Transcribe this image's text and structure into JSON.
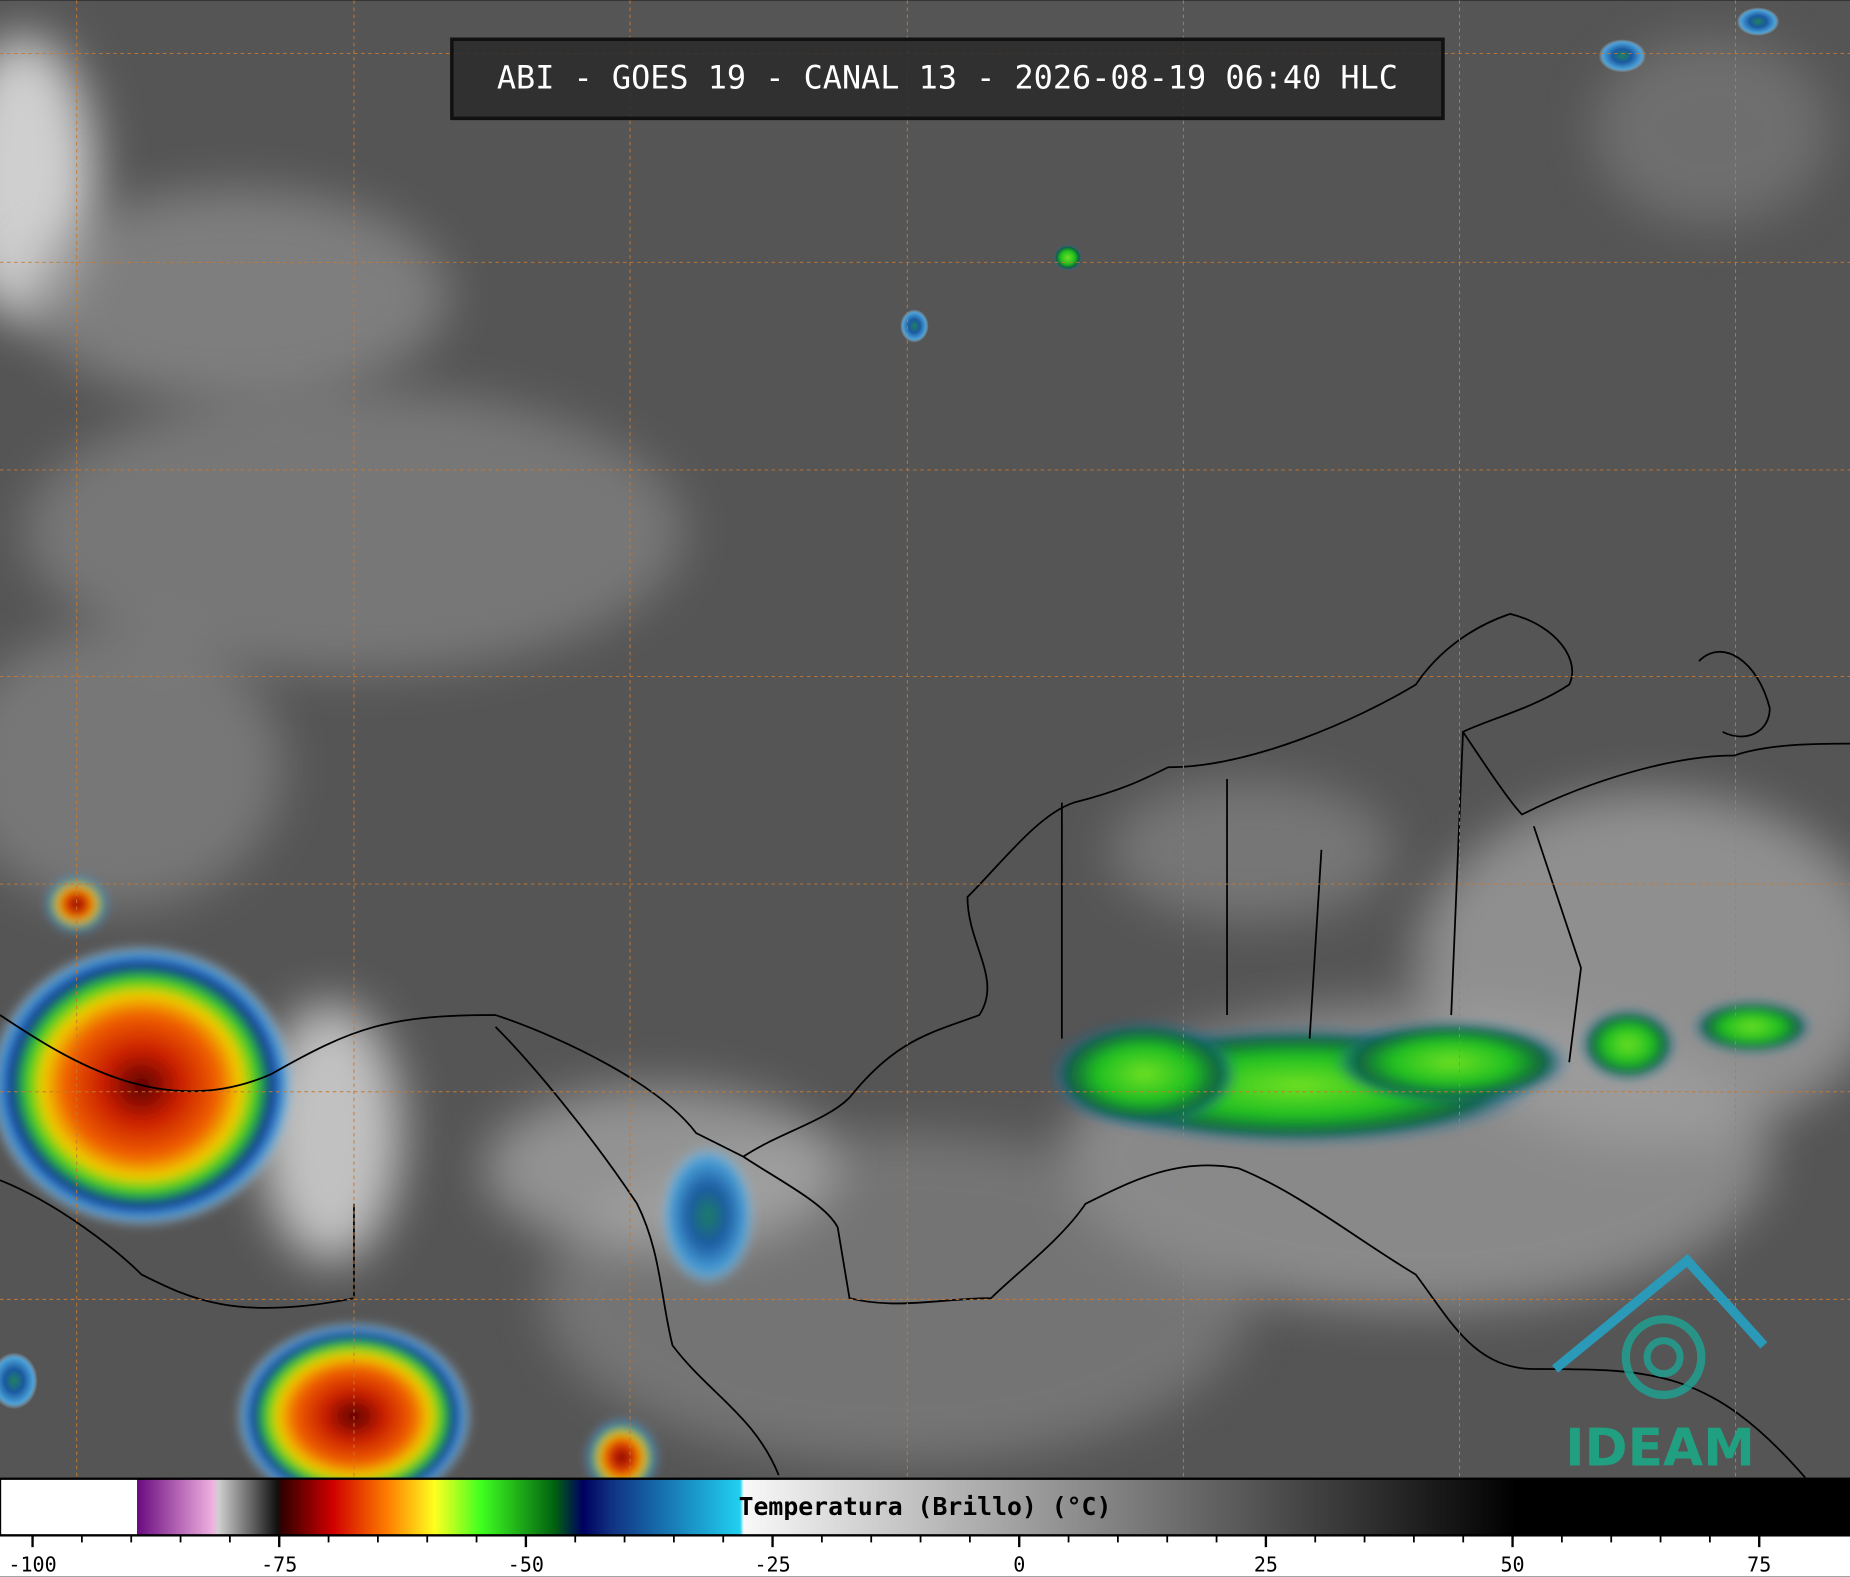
{
  "title": "ABI - GOES 19 - CANAL 13 - 2026-08-19 06:40 HLC",
  "colorbar": {
    "label": "Temperatura (Brillo) (°C)",
    "xlim": [
      -103.3,
      84.2
    ],
    "ticks": [
      -100,
      -75,
      -50,
      -25,
      0,
      25,
      50,
      75
    ]
  },
  "logo": "IDEAM"
}
